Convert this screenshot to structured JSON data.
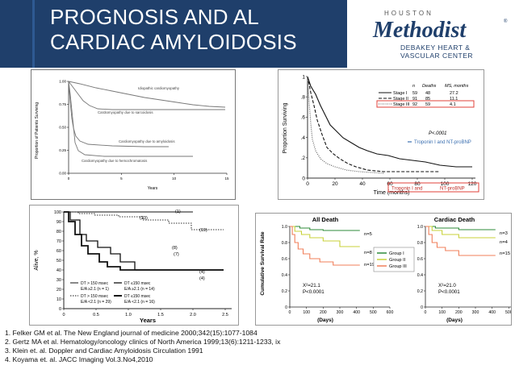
{
  "slide": {
    "title_line1": "PROGNOSIS AND AL",
    "title_line2": "CARDIAC AMYLOIDOSIS"
  },
  "logo": {
    "small": "HOUSTON",
    "big": "Methodist",
    "tm": "®",
    "sub_line1": "DEBAKEY HEART &",
    "sub_line2": "VASCULAR CENTER"
  },
  "fig1": {
    "ylabel": "Proportion of Patients Surviving",
    "xlabel": "Years",
    "yticks": [
      "1.00",
      "0.75",
      "0.50",
      "0.25",
      "0.00"
    ],
    "xticks": [
      "0",
      "5",
      "10",
      "15"
    ],
    "labels": [
      "Idiopathic cardiomyopathy",
      "Cardiomyopathy due to sarcoidosis",
      "Cardiomyopathy due to amyloidosis",
      "Cardiomyopathy due to hemochromatosis"
    ]
  },
  "fig2": {
    "ylabel": "Proportion Surviving",
    "xlabel": "Time (months)",
    "yticks": [
      "1",
      ".8",
      ".6",
      ".4",
      ".2",
      "0"
    ],
    "xticks": [
      "0",
      "20",
      "40",
      "60",
      "80",
      "100",
      "120"
    ],
    "table_headers": [
      "n",
      "Deaths",
      "MS, months"
    ],
    "rows": [
      {
        "stage": "Stage I",
        "n": "59",
        "deaths": "48",
        "ms": "27.2"
      },
      {
        "stage": "Stage II",
        "n": "91",
        "deaths": "85",
        "ms": "11.1"
      },
      {
        "stage": "Stage III",
        "n": "92",
        "deaths": "59",
        "ms": "4.1"
      }
    ],
    "pvalue": "P<.0001",
    "note1": "Troponin I and NT-proBNP",
    "note2": "Troponin I and",
    "note3": "NT-proBNP"
  },
  "fig3": {
    "ylabel": "Alive, %",
    "xlabel": "Years",
    "yticks": [
      "100",
      "90",
      "80",
      "70",
      "60",
      "50",
      "40",
      "30",
      "20",
      "10",
      "0"
    ],
    "xticks": [
      "0",
      "0.5",
      "1.0",
      "1.5",
      "2.0",
      "2.5"
    ],
    "counts": [
      "(1)",
      "(23)",
      "(19)",
      "(8)",
      "(7)",
      "(4)",
      "(4)"
    ],
    "legend": [
      {
        "line1": "DT > 150 msec",
        "line2": "E/A ≥2.1  (n = 1)"
      },
      {
        "line1": "DT ≤150 msec",
        "line2": "E/A ≥2.1  (n = 14)"
      },
      {
        "line1": "DT > 150 msec",
        "line2": "E/A <2.1  (n = 29)"
      },
      {
        "line1": "DT ≤150 msec",
        "line2": "E/A <2.1  (n = 16)"
      }
    ]
  },
  "fig4": {
    "ylabel": "Cumulative Survival Rate",
    "xlabel": "(Days)",
    "yticks": [
      "1.0",
      "0.8",
      "0.6",
      "0.4",
      "0.2",
      "0"
    ],
    "xticks": [
      "0",
      "100",
      "200",
      "300",
      "400",
      "500",
      "600"
    ],
    "all": {
      "title": "All Death",
      "n": [
        "n=5",
        "n=8",
        "n=19"
      ],
      "chi": "X²=21.1",
      "p": "P<0.0001"
    },
    "cardiac": {
      "title": "Cardiac Death",
      "n": [
        "n=3",
        "n=4",
        "n=15"
      ],
      "chi": "X²=21.0",
      "p": "P<0.0001"
    },
    "legend": [
      "Group I",
      "Group II",
      "Group III"
    ],
    "colors": {
      "group1": "#2e8b3a",
      "group2": "#c8d23a",
      "group3": "#f07f5a"
    }
  },
  "references": [
    "1.   Felker GM et al. The New England journal of medicine 2000;342(15):1077-1084",
    "2.   Gertz MA et al. Hematology/oncology clinics of North America 1999;13(6):1211-1233, ix",
    "3.    Klein et. al. Doppler and Cardiac  Amyloidosis Circulation 1991",
    "4.   Koyama et. al. JACC Imaging Vol.3.No4,2010"
  ]
}
